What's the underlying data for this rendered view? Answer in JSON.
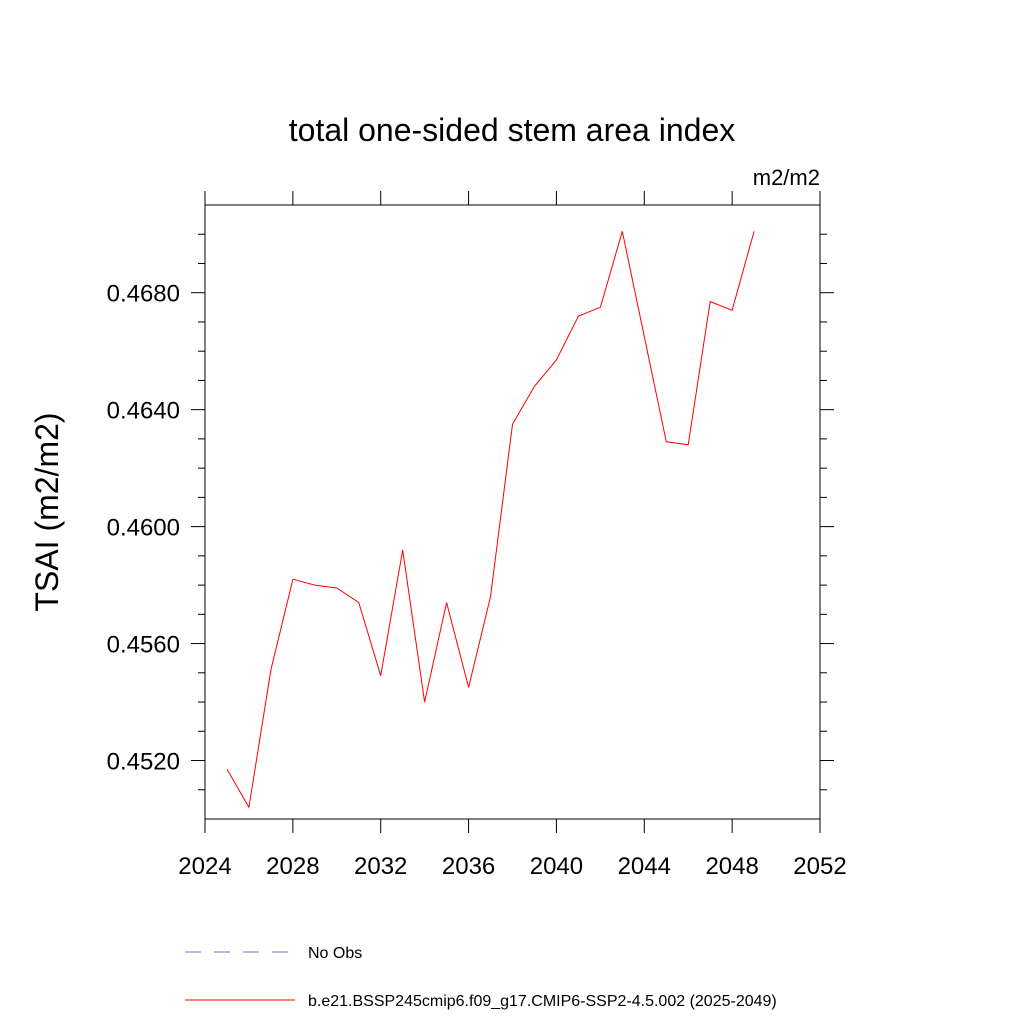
{
  "chart_data": {
    "type": "line",
    "title": "total one-sided stem area index",
    "units_label": "m2/m2",
    "ylabel": "TSAI  (m2/m2)",
    "xlabel": "",
    "xlim": [
      2024,
      2052
    ],
    "ylim": [
      0.45,
      0.471
    ],
    "x_ticks": [
      2024,
      2028,
      2032,
      2036,
      2040,
      2044,
      2048,
      2052
    ],
    "x_tick_labels": [
      "2024",
      "2028",
      "2032",
      "2036",
      "2040",
      "2044",
      "2048",
      "2052"
    ],
    "y_ticks": [
      0.452,
      0.456,
      0.46,
      0.464,
      0.468
    ],
    "y_tick_labels": [
      "0.4520",
      "0.4560",
      "0.4600",
      "0.4640",
      "0.4680"
    ],
    "grid": false,
    "legend_position": "bottom",
    "series": [
      {
        "name": "b.e21.BSSP245cmip6.f09_g17.CMIP6-SSP2-4.5.002 (2025-2049)",
        "color": "#ff0000",
        "style": "solid",
        "x": [
          2025,
          2026,
          2027,
          2028,
          2029,
          2030,
          2031,
          2032,
          2033,
          2034,
          2035,
          2036,
          2037,
          2038,
          2039,
          2040,
          2041,
          2042,
          2043,
          2044,
          2045,
          2046,
          2047,
          2048,
          2049
        ],
        "y": [
          0.4517,
          0.4504,
          0.4551,
          0.4582,
          0.458,
          0.4579,
          0.4574,
          0.4549,
          0.4592,
          0.454,
          0.4574,
          0.4545,
          0.4576,
          0.4635,
          0.4648,
          0.4657,
          0.4672,
          0.4675,
          0.4701,
          0.4665,
          0.4629,
          0.4628,
          0.4677,
          0.4674,
          0.4701
        ]
      },
      {
        "name": "No Obs",
        "color": "#6f6fbf",
        "style": "dashed",
        "x": [],
        "y": []
      }
    ],
    "legend": [
      {
        "label": "No Obs",
        "color": "#6f6fbf",
        "style": "dashed"
      },
      {
        "label": "b.e21.BSSP245cmip6.f09_g17.CMIP6-SSP2-4.5.002 (2025-2049)",
        "color": "#ff0000",
        "style": "solid"
      }
    ]
  }
}
